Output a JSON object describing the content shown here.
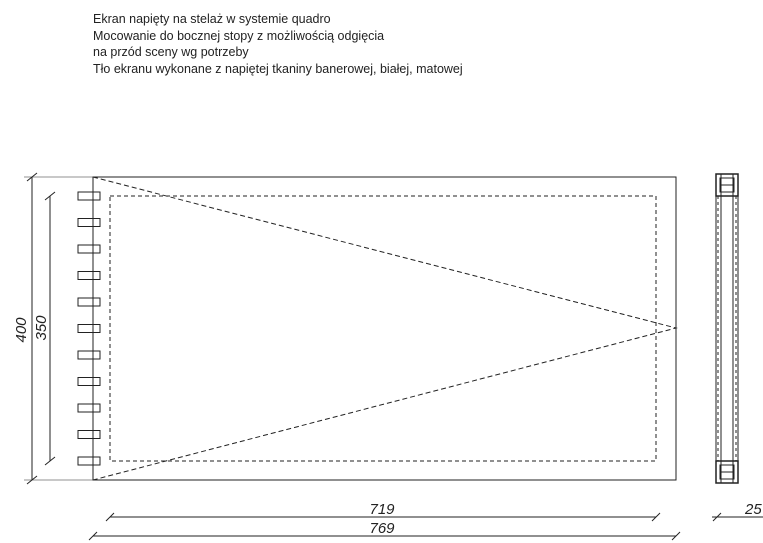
{
  "notes": [
    "Ekran napięty na stelaż w systemie quadro",
    "Mocowanie do bocznej stopy z możliwością odgięcia",
    "na przód sceny wg potrzeby",
    "Tło ekranu wykonane z napiętej tkaniny banerowej, białej, matowej"
  ],
  "dimensions": {
    "outer_height": "400",
    "inner_height": "350",
    "inner_width": "719",
    "outer_width": "769",
    "depth": "25"
  },
  "colors": {
    "line": "#222222",
    "background": "#ffffff"
  }
}
